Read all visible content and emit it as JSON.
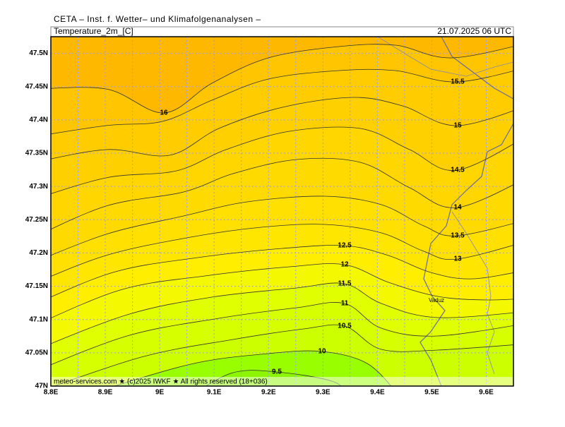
{
  "header": {
    "title": "CETA – Inst. f. Wetter– und Klimafolgenanalysen –",
    "subtitle": "Temperature_2m_[C]",
    "timestamp": "21.07.2025 06 UTC"
  },
  "axes": {
    "xlim": [
      8.8,
      9.65
    ],
    "ylim": [
      47,
      47.525
    ],
    "xticks": [
      {
        "value": 8.8,
        "label": "8.8E"
      },
      {
        "value": 8.9,
        "label": "8.9E"
      },
      {
        "value": 9,
        "label": "9E"
      },
      {
        "value": 9.1,
        "label": "9.1E"
      },
      {
        "value": 9.2,
        "label": "9.2E"
      },
      {
        "value": 9.3,
        "label": "9.3E"
      },
      {
        "value": 9.4,
        "label": "9.4E"
      },
      {
        "value": 9.5,
        "label": "9.5E"
      },
      {
        "value": 9.6,
        "label": "9.6E"
      }
    ],
    "yticks": [
      {
        "value": 47,
        "label": "47N"
      },
      {
        "value": 47.05,
        "label": "47.05N"
      },
      {
        "value": 47.1,
        "label": "47.1N"
      },
      {
        "value": 47.15,
        "label": "47.15N"
      },
      {
        "value": 47.2,
        "label": "47.2N"
      },
      {
        "value": 47.25,
        "label": "47.25N"
      },
      {
        "value": 47.3,
        "label": "47.3N"
      },
      {
        "value": 47.35,
        "label": "47.35N"
      },
      {
        "value": 47.4,
        "label": "47.4N"
      },
      {
        "value": 47.45,
        "label": "47.45N"
      },
      {
        "value": 47.5,
        "label": "47.5N"
      }
    ]
  },
  "contours": [
    16,
    15.5,
    15,
    14.5,
    14,
    13.5,
    13,
    12.5,
    12,
    11.5,
    11,
    10.5,
    10,
    9.5
  ],
  "places": [
    "Vaduz"
  ],
  "footer": "meteo-services.com ★ (c)2025 IWKF ★ All rights reserved (18+036)"
}
